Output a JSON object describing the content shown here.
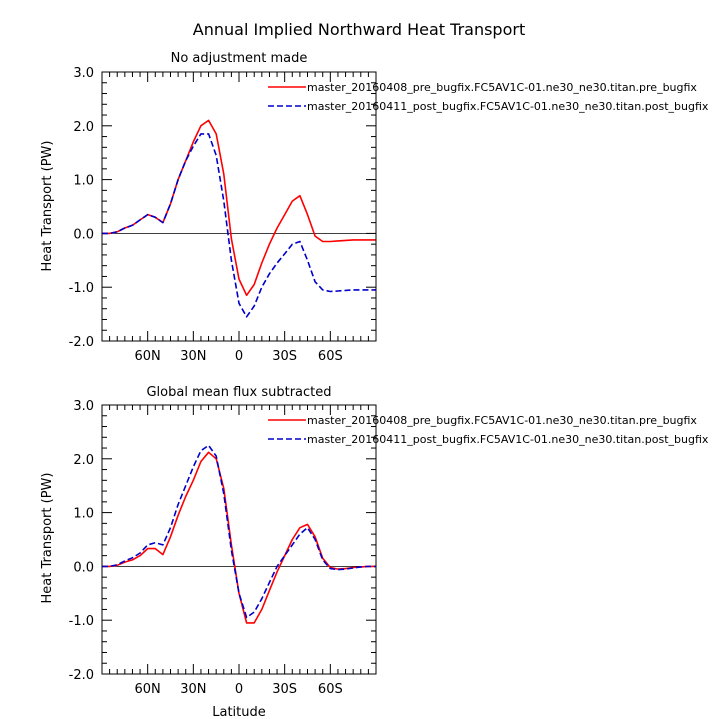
{
  "figure": {
    "title": "Annual Implied Northward Heat Transport",
    "xlabel": "Latitude",
    "ylabel": "Heat Transport (PW)"
  },
  "chart_data": [
    {
      "type": "line",
      "title": "No adjustment made",
      "xlabel": "",
      "ylabel": "Heat Transport (PW)",
      "xlim": [
        90,
        -90
      ],
      "ylim": [
        -2.0,
        3.0
      ],
      "x_ticks": [
        60,
        30,
        0,
        -30,
        -60
      ],
      "x_tick_labels": [
        "60N",
        "30N",
        "0",
        "30S",
        "60S"
      ],
      "y_ticks": [
        -2.0,
        -1.0,
        0.0,
        1.0,
        2.0,
        3.0
      ],
      "y_tick_labels": [
        "-2.0",
        "-1.0",
        "0.0",
        "1.0",
        "2.0",
        "3.0"
      ],
      "zero_line": true,
      "legend_position": "top-right",
      "x": [
        90,
        85,
        80,
        75,
        70,
        65,
        60,
        55,
        50,
        45,
        40,
        35,
        30,
        25,
        20,
        15,
        10,
        5,
        0,
        -5,
        -10,
        -15,
        -20,
        -25,
        -30,
        -35,
        -40,
        -45,
        -50,
        -55,
        -60,
        -65,
        -70,
        -75,
        -80,
        -85,
        -90
      ],
      "series": [
        {
          "name": "master_20160408_pre_bugfix.FC5AV1C-01.ne30_ne30.titan.pre_bugfix",
          "color": "#ff0000",
          "dash": "solid",
          "values": [
            0.0,
            0.0,
            0.03,
            0.1,
            0.15,
            0.25,
            0.35,
            0.3,
            0.2,
            0.55,
            1.0,
            1.35,
            1.7,
            2.0,
            2.1,
            1.85,
            1.1,
            -0.1,
            -0.85,
            -1.15,
            -0.95,
            -0.55,
            -0.2,
            0.1,
            0.35,
            0.6,
            0.7,
            0.35,
            -0.05,
            -0.15,
            -0.15,
            -0.14,
            -0.13,
            -0.12,
            -0.12,
            -0.12,
            -0.12
          ]
        },
        {
          "name": "master_20160411_post_bugfix.FC5AV1C-01.ne30_ne30.titan.post_bugfix",
          "color": "#0000cc",
          "dash": "dashed",
          "values": [
            0.0,
            0.0,
            0.03,
            0.1,
            0.15,
            0.25,
            0.35,
            0.3,
            0.2,
            0.55,
            1.0,
            1.35,
            1.62,
            1.85,
            1.85,
            1.45,
            0.6,
            -0.5,
            -1.3,
            -1.55,
            -1.35,
            -1.0,
            -0.75,
            -0.55,
            -0.38,
            -0.2,
            -0.15,
            -0.5,
            -0.9,
            -1.05,
            -1.08,
            -1.07,
            -1.06,
            -1.05,
            -1.05,
            -1.05,
            -1.05
          ]
        }
      ]
    },
    {
      "type": "line",
      "title": "Global mean flux subtracted",
      "xlabel": "Latitude",
      "ylabel": "Heat Transport (PW)",
      "xlim": [
        90,
        -90
      ],
      "ylim": [
        -2.0,
        3.0
      ],
      "x_ticks": [
        60,
        30,
        0,
        -30,
        -60
      ],
      "x_tick_labels": [
        "60N",
        "30N",
        "0",
        "30S",
        "60S"
      ],
      "y_ticks": [
        -2.0,
        -1.0,
        0.0,
        1.0,
        2.0,
        3.0
      ],
      "y_tick_labels": [
        "-2.0",
        "-1.0",
        "0.0",
        "1.0",
        "2.0",
        "3.0"
      ],
      "zero_line": true,
      "legend_position": "top-right",
      "x": [
        90,
        85,
        80,
        75,
        70,
        65,
        60,
        55,
        50,
        45,
        40,
        35,
        30,
        25,
        20,
        15,
        10,
        5,
        0,
        -5,
        -10,
        -15,
        -20,
        -25,
        -30,
        -35,
        -40,
        -45,
        -50,
        -55,
        -60,
        -65,
        -70,
        -75,
        -80,
        -85,
        -90
      ],
      "series": [
        {
          "name": "master_20160408_pre_bugfix.FC5AV1C-01.ne30_ne30.titan.pre_bugfix",
          "color": "#ff0000",
          "dash": "solid",
          "values": [
            0.0,
            0.0,
            0.02,
            0.08,
            0.12,
            0.2,
            0.33,
            0.33,
            0.22,
            0.55,
            0.95,
            1.3,
            1.6,
            1.95,
            2.12,
            2.0,
            1.45,
            0.4,
            -0.5,
            -1.05,
            -1.05,
            -0.8,
            -0.45,
            -0.1,
            0.2,
            0.5,
            0.72,
            0.78,
            0.55,
            0.15,
            -0.02,
            -0.05,
            -0.04,
            -0.02,
            -0.01,
            0.0,
            0.0
          ]
        },
        {
          "name": "master_20160411_post_bugfix.FC5AV1C-01.ne30_ne30.titan.post_bugfix",
          "color": "#0000cc",
          "dash": "dashed",
          "values": [
            0.0,
            0.0,
            0.03,
            0.1,
            0.16,
            0.25,
            0.4,
            0.44,
            0.4,
            0.72,
            1.15,
            1.5,
            1.85,
            2.15,
            2.25,
            2.05,
            1.35,
            0.3,
            -0.5,
            -0.95,
            -0.85,
            -0.6,
            -0.3,
            0.0,
            0.2,
            0.4,
            0.6,
            0.72,
            0.5,
            0.12,
            -0.04,
            -0.06,
            -0.05,
            -0.03,
            -0.01,
            0.0,
            0.0
          ]
        }
      ]
    }
  ]
}
